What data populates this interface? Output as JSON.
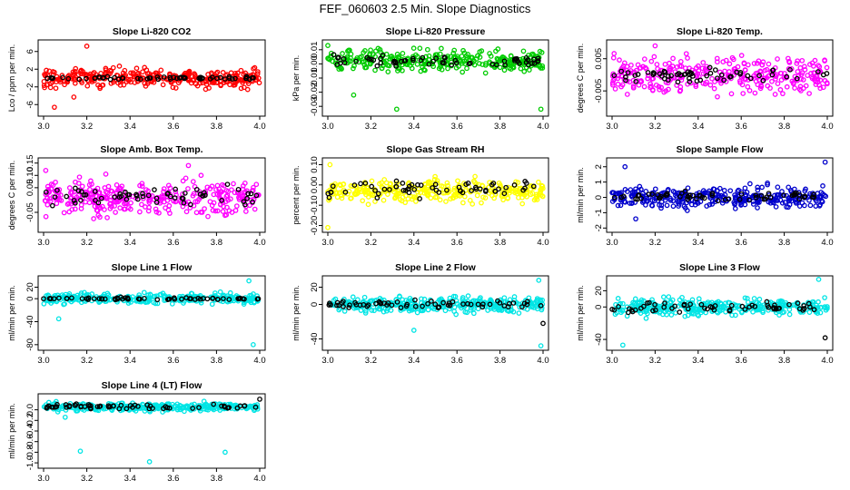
{
  "page": {
    "title": "FEF_060603  2.5 Min. Slope Diagnostics"
  },
  "chart_data": [
    {
      "type": "scatter",
      "title": "Slope Li-820 CO2",
      "ylabel": "Lco / ppm per min.",
      "xlim": [
        3.0,
        4.0
      ],
      "ylim": [
        -8,
        8
      ],
      "xticks": [
        "3.0",
        "3.2",
        "3.4",
        "3.6",
        "3.8",
        "4.0"
      ],
      "yticks": [
        "-6",
        "-2",
        "2",
        "6"
      ],
      "series": [
        {
          "color": "#ff0000",
          "center": 0,
          "spread": 1.4,
          "outliers": [
            [
              3.2,
              7.2
            ],
            [
              3.05,
              -6.6
            ],
            [
              3.14,
              -4.3
            ]
          ]
        },
        {
          "color": "#000000",
          "center": 0,
          "spread": 0.25,
          "outliers": []
        }
      ]
    },
    {
      "type": "scatter",
      "title": "Slope Li-820 Pressure",
      "ylabel": "kPa per min.",
      "xlim": [
        3.0,
        4.0
      ],
      "ylim": [
        -0.035,
        0.015
      ],
      "xticks": [
        "3.0",
        "3.2",
        "3.4",
        "3.6",
        "3.8",
        "4.0"
      ],
      "yticks": [
        "-0.03",
        "-0.02",
        "-0.01",
        "0.00",
        "0.01"
      ],
      "series": [
        {
          "color": "#00cc00",
          "center": 0.002,
          "spread": 0.005,
          "outliers": [
            [
              3.0,
              0.013
            ],
            [
              3.32,
              -0.032
            ],
            [
              3.99,
              -0.032
            ],
            [
              3.12,
              -0.022
            ]
          ]
        },
        {
          "color": "#000000",
          "center": 0.002,
          "spread": 0.0025,
          "outliers": []
        }
      ]
    },
    {
      "type": "scatter",
      "title": "Slope Li-820 Temp.",
      "ylabel": "degrees C per min.",
      "xlim": [
        3.0,
        4.0
      ],
      "ylim": [
        -0.012,
        0.01
      ],
      "xticks": [
        "3.0",
        "3.2",
        "3.4",
        "3.6",
        "3.8",
        "4.0"
      ],
      "yticks": [
        "-0.005",
        "0.005"
      ],
      "series": [
        {
          "color": "#ff00ff",
          "center": 0,
          "spread": 0.004,
          "outliers": [
            [
              3.2,
              0.009
            ]
          ]
        },
        {
          "color": "#000000",
          "center": 0,
          "spread": 0.0015,
          "outliers": []
        }
      ]
    },
    {
      "type": "scatter",
      "title": "Slope Amb. Box Temp.",
      "ylabel": "degrees C per min.",
      "xlim": [
        3.0,
        4.0
      ],
      "ylim": [
        -0.12,
        0.16
      ],
      "xticks": [
        "3.0",
        "3.2",
        "3.4",
        "3.6",
        "3.8",
        "4.0"
      ],
      "yticks": [
        "-0.05",
        "0.05",
        "0.10",
        "0.15"
      ],
      "series": [
        {
          "color": "#ff00ff",
          "center": 0.01,
          "spread": 0.045,
          "outliers": [
            [
              3.01,
              0.12
            ],
            [
              3.67,
              0.14
            ]
          ]
        },
        {
          "color": "#000000",
          "center": 0.01,
          "spread": 0.03,
          "outliers": []
        }
      ]
    },
    {
      "type": "scatter",
      "title": "Slope Gas Stream RH",
      "ylabel": "percent per min.",
      "xlim": [
        3.0,
        4.0
      ],
      "ylim": [
        -0.22,
        0.12
      ],
      "xticks": [
        "3.0",
        "3.2",
        "3.4",
        "3.6",
        "3.8",
        "4.0"
      ],
      "yticks": [
        "-0.20",
        "-0.10",
        "0.00",
        "0.10"
      ],
      "series": [
        {
          "color": "#ffff00",
          "center": -0.03,
          "spread": 0.035,
          "outliers": [
            [
              3.0,
              -0.21
            ],
            [
              3.01,
              0.1
            ]
          ]
        },
        {
          "color": "#000000",
          "center": -0.02,
          "spread": 0.03,
          "outliers": []
        }
      ]
    },
    {
      "type": "scatter",
      "title": "Slope Sample Flow",
      "ylabel": "ml/min per min.",
      "xlim": [
        3.0,
        4.0
      ],
      "ylim": [
        -2.1,
        2.4
      ],
      "xticks": [
        "3.0",
        "3.2",
        "3.4",
        "3.6",
        "3.8",
        "4.0"
      ],
      "yticks": [
        "-2",
        "-1",
        "0",
        "1",
        "2"
      ],
      "series": [
        {
          "color": "#0000cc",
          "center": 0,
          "spread": 0.45,
          "outliers": [
            [
              3.06,
              2.0
            ],
            [
              3.11,
              -1.4
            ],
            [
              3.99,
              2.3
            ]
          ]
        },
        {
          "color": "#000000",
          "center": 0.1,
          "spread": 0.2,
          "outliers": []
        }
      ]
    },
    {
      "type": "scatter",
      "title": "Slope Line 1 Flow",
      "ylabel": "ml/min per min.",
      "xlim": [
        3.0,
        4.0
      ],
      "ylim": [
        -85,
        35
      ],
      "xticks": [
        "3.0",
        "3.2",
        "3.4",
        "3.6",
        "3.8",
        "4.0"
      ],
      "yticks": [
        "-80",
        "-40",
        "0",
        "20"
      ],
      "series": [
        {
          "color": "#00e5e5",
          "center": 0,
          "spread": 6,
          "outliers": [
            [
              3.95,
              31
            ],
            [
              3.97,
              -80
            ],
            [
              3.07,
              -35
            ]
          ]
        },
        {
          "color": "#000000",
          "center": 0,
          "spread": 1.2,
          "outliers": []
        }
      ]
    },
    {
      "type": "scatter",
      "title": "Slope Line 2 Flow",
      "ylabel": "ml/min per min.",
      "xlim": [
        3.0,
        4.0
      ],
      "ylim": [
        -50,
        30
      ],
      "xticks": [
        "3.0",
        "3.2",
        "3.4",
        "3.6",
        "3.8",
        "4.0"
      ],
      "yticks": [
        "-40",
        "0",
        "20"
      ],
      "series": [
        {
          "color": "#00e5e5",
          "center": 0,
          "spread": 6,
          "outliers": [
            [
              3.99,
              -48
            ],
            [
              3.98,
              28
            ],
            [
              3.4,
              -30
            ]
          ]
        },
        {
          "color": "#000000",
          "center": 0,
          "spread": 3,
          "outliers": [
            [
              4.0,
              -22
            ]
          ]
        }
      ]
    },
    {
      "type": "scatter",
      "title": "Slope Line 3 Flow",
      "ylabel": "ml/min per min.",
      "xlim": [
        3.0,
        4.0
      ],
      "ylim": [
        -50,
        35
      ],
      "xticks": [
        "3.0",
        "3.2",
        "3.4",
        "3.6",
        "3.8",
        "4.0"
      ],
      "yticks": [
        "-40",
        "0",
        "20"
      ],
      "series": [
        {
          "color": "#00e5e5",
          "center": 0,
          "spread": 7,
          "outliers": [
            [
              3.05,
              -47
            ],
            [
              3.96,
              34
            ]
          ]
        },
        {
          "color": "#000000",
          "center": 0,
          "spread": 4,
          "outliers": [
            [
              3.99,
              -38
            ]
          ]
        }
      ]
    },
    {
      "type": "scatter",
      "title": "Slope Line 4 (LT) Flow",
      "ylabel": "ml/min per min.",
      "xlim": [
        3.0,
        4.0
      ],
      "ylim": [
        -1.05,
        0.25
      ],
      "xticks": [
        "3.0",
        "3.2",
        "3.4",
        "3.6",
        "3.8",
        "4.0"
      ],
      "yticks": [
        "-1.0",
        "-0.8",
        "-0.6",
        "-0.4",
        "-0.2",
        "0.0"
      ],
      "series": [
        {
          "color": "#00e5e5",
          "center": 0.05,
          "spread": 0.05,
          "outliers": [
            [
              3.17,
              -0.78
            ],
            [
              3.49,
              -0.98
            ],
            [
              3.84,
              -0.8
            ],
            [
              3.1,
              -0.14
            ]
          ]
        },
        {
          "color": "#000000",
          "center": 0.06,
          "spread": 0.03,
          "outliers": [
            [
              4.0,
              0.2
            ]
          ]
        }
      ]
    }
  ]
}
